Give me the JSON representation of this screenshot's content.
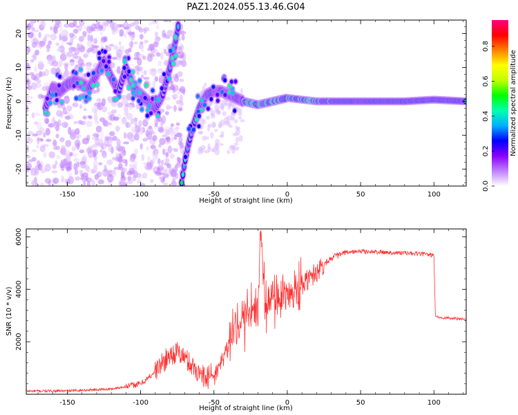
{
  "figure": {
    "title": "PAZ1.2024.055.13.46.G04"
  },
  "chart_data": [
    {
      "type": "heatmap",
      "title": "PAZ1.2024.055.13.46.G04",
      "xlabel": "Height of straight line (km)",
      "ylabel": "Frequency (Hz)",
      "xlim": [
        -178,
        122
      ],
      "ylim": [
        -25,
        24
      ],
      "xticks": [
        -150,
        -100,
        -50,
        0,
        50,
        100
      ],
      "yticks": [
        -20,
        -10,
        0,
        10,
        20
      ],
      "colorbar": {
        "label": "Normalized spectral amplitude",
        "range": [
          0,
          0.95
        ],
        "ticks": [
          "0.0",
          "0.2",
          "0.4",
          "0.6",
          "0.8"
        ],
        "colormap": [
          "#ffffff",
          "#c080ff",
          "#8a00ff",
          "#0000ff",
          "#00b0ff",
          "#00ffb0",
          "#00ff00",
          "#c0ff00",
          "#ffff00",
          "#ff8000",
          "#ff0000",
          "#ff0080"
        ]
      },
      "ridge": [
        {
          "x": -165,
          "y": -2
        },
        {
          "x": -160,
          "y": 4
        },
        {
          "x": -155,
          "y": 3
        },
        {
          "x": -150,
          "y": 5
        },
        {
          "x": -145,
          "y": 6
        },
        {
          "x": -140,
          "y": 5
        },
        {
          "x": -135,
          "y": 4
        },
        {
          "x": -130,
          "y": 8
        },
        {
          "x": -125,
          "y": 12
        },
        {
          "x": -120,
          "y": 7
        },
        {
          "x": -115,
          "y": 3
        },
        {
          "x": -110,
          "y": 10
        },
        {
          "x": -105,
          "y": 4
        },
        {
          "x": -100,
          "y": 2
        },
        {
          "x": -95,
          "y": 0
        },
        {
          "x": -90,
          "y": -2
        },
        {
          "x": -85,
          "y": 2
        },
        {
          "x": -80,
          "y": 10
        },
        {
          "x": -77,
          "y": 16
        },
        {
          "x": -74,
          "y": 23
        },
        {
          "x": -72,
          "y": -24
        },
        {
          "x": -70,
          "y": -18
        },
        {
          "x": -67,
          "y": -12
        },
        {
          "x": -64,
          "y": -7
        },
        {
          "x": -60,
          "y": -2
        },
        {
          "x": -55,
          "y": 2
        },
        {
          "x": -50,
          "y": 3
        },
        {
          "x": -45,
          "y": 3
        },
        {
          "x": -40,
          "y": 2
        },
        {
          "x": -35,
          "y": 1
        },
        {
          "x": -30,
          "y": 0
        },
        {
          "x": -20,
          "y": -1
        },
        {
          "x": -10,
          "y": 0
        },
        {
          "x": 0,
          "y": 1
        },
        {
          "x": 10,
          "y": 0.5
        },
        {
          "x": 20,
          "y": 0
        },
        {
          "x": 40,
          "y": 0
        },
        {
          "x": 60,
          "y": 0
        },
        {
          "x": 80,
          "y": 0
        },
        {
          "x": 100,
          "y": 0.5
        },
        {
          "x": 122,
          "y": 0
        }
      ]
    },
    {
      "type": "line",
      "xlabel": "Height of straight line (km)",
      "ylabel": "SNR (10 * v/v)",
      "xlim": [
        -178,
        122
      ],
      "ylim": [
        0,
        6300
      ],
      "xticks": [
        -150,
        -100,
        -50,
        0,
        50,
        100
      ],
      "yticks": [
        2000,
        4000,
        6000
      ],
      "color": "#ff3030",
      "series": [
        {
          "x": [
            -178,
            -150,
            -120,
            -110,
            -100,
            -95,
            -90,
            -85,
            -80,
            -75,
            -70,
            -65,
            -60,
            -55,
            -50,
            -45,
            -40,
            -35,
            -30,
            -25,
            -20,
            -18,
            -15,
            -10,
            -5,
            0,
            5,
            10,
            15,
            20,
            30,
            40,
            50,
            60,
            70,
            80,
            90,
            100,
            101,
            102,
            110,
            122
          ],
          "y": [
            120,
            130,
            200,
            300,
            400,
            600,
            900,
            1200,
            1500,
            1600,
            1400,
            1100,
            800,
            650,
            700,
            1200,
            1900,
            2500,
            2900,
            3200,
            3400,
            6200,
            3500,
            3600,
            3700,
            4000,
            4100,
            4200,
            4400,
            4700,
            5200,
            5400,
            5450,
            5420,
            5400,
            5380,
            5350,
            5300,
            3000,
            2950,
            2900,
            2850
          ]
        }
      ]
    }
  ]
}
